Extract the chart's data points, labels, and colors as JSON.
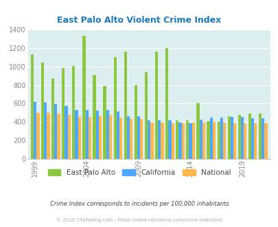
{
  "title": "East Palo Alto Violent Crime Index",
  "years": [
    1999,
    2000,
    2001,
    2002,
    2003,
    2004,
    2005,
    2006,
    2007,
    2008,
    2009,
    2010,
    2011,
    2012,
    2013,
    2014,
    2015,
    2016,
    2017,
    2018,
    2019,
    2020,
    2021
  ],
  "epa": [
    1130,
    1040,
    870,
    980,
    1005,
    1330,
    905,
    790,
    1100,
    1160,
    800,
    940,
    1160,
    1195,
    420,
    415,
    600,
    410,
    400,
    465,
    480,
    490,
    490
  ],
  "ca": [
    620,
    610,
    595,
    575,
    530,
    530,
    520,
    525,
    510,
    465,
    465,
    415,
    420,
    420,
    395,
    390,
    425,
    450,
    450,
    455,
    455,
    440,
    440
  ],
  "nat": [
    500,
    500,
    490,
    475,
    455,
    455,
    470,
    475,
    450,
    435,
    430,
    395,
    395,
    385,
    385,
    395,
    395,
    400,
    395,
    385,
    390,
    385,
    385
  ],
  "epa_color": "#8dc63f",
  "ca_color": "#4da6ff",
  "nat_color": "#ffb84d",
  "bg_color": "#ddeef0",
  "title_color": "#1a7abf",
  "tick_color": "#888888",
  "grid_color": "#ffffff",
  "ylim": [
    0,
    1400
  ],
  "yticks": [
    0,
    200,
    400,
    600,
    800,
    1000,
    1200,
    1400
  ],
  "xlabel_ticks": [
    1999,
    2004,
    2009,
    2014,
    2019
  ],
  "footer1": "Crime Index corresponds to incidents per 100,000 inhabitants",
  "footer2": "© 2025 CityRating.com - https://www.cityrating.com/crime-statistics/",
  "legend_labels": [
    "East Palo Alto",
    "California",
    "National"
  ]
}
